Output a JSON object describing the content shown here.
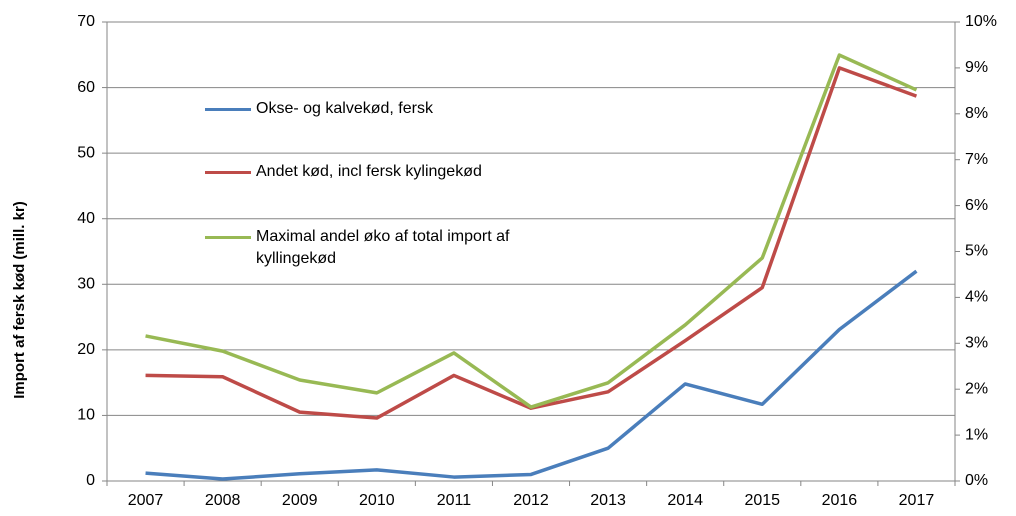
{
  "chart_data": {
    "type": "line",
    "y_label": "Import af fersk kød  (mill. kr)",
    "categories": [
      "2007",
      "2008",
      "2009",
      "2010",
      "2011",
      "2012",
      "2013",
      "2014",
      "2015",
      "2016",
      "2017"
    ],
    "series": [
      {
        "name": "Okse- og kalvekød, fersk",
        "color": "#4a7ebb",
        "values": [
          1.2,
          0.3,
          1.1,
          1.7,
          0.6,
          1.0,
          5.0,
          14.8,
          11.7,
          23.1,
          32.0
        ]
      },
      {
        "name": "Andet kød, incl fersk kylingekød",
        "color": "#be4b48",
        "values": [
          16.1,
          15.9,
          10.5,
          9.6,
          16.1,
          11.1,
          13.6,
          21.4,
          29.5,
          63.0,
          58.7
        ]
      },
      {
        "name": "Maximal andel øko af total import af kyllingekød",
        "color": "#98b954",
        "axis": "y2",
        "values": [
          3.16,
          2.83,
          2.2,
          1.92,
          2.79,
          1.61,
          2.14,
          3.4,
          4.86,
          9.28,
          8.52
        ]
      }
    ],
    "ylim": [
      0,
      70
    ],
    "yticks": [
      0,
      10,
      20,
      30,
      40,
      50,
      60,
      70
    ],
    "y2lim": [
      0,
      10
    ],
    "y2ticks": [
      {
        "value": 0,
        "label": "0%"
      },
      {
        "value": 1,
        "label": "1%"
      },
      {
        "value": 2,
        "label": "2%"
      },
      {
        "value": 3,
        "label": "3%"
      },
      {
        "value": 4,
        "label": "4%"
      },
      {
        "value": 5,
        "label": "5%"
      },
      {
        "value": 6,
        "label": "6%"
      },
      {
        "value": 7,
        "label": "7%"
      },
      {
        "value": 8,
        "label": "8%"
      },
      {
        "value": 9,
        "label": "9%"
      },
      {
        "value": 10,
        "label": "10%"
      }
    ],
    "grid": true
  }
}
